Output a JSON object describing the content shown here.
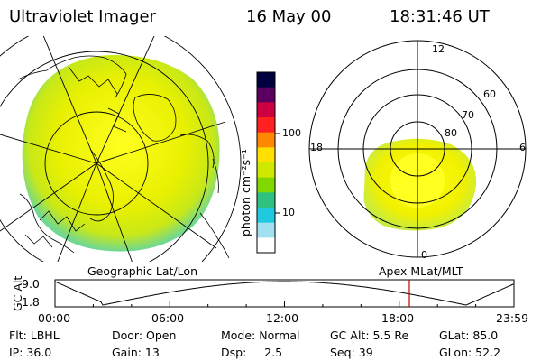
{
  "header": {
    "instrument": "Ultraviolet Imager",
    "date": "16 May 00",
    "time": "18:31:46 UT"
  },
  "geo_map": {
    "label": "Geographic Lat/Lon"
  },
  "apex_map": {
    "label": "Apex MLat/MLT",
    "mlt_labels": [
      "12",
      "18",
      "6",
      "0"
    ],
    "mlat_labels": [
      "60",
      "70",
      "80"
    ]
  },
  "colorbar": {
    "unit_label": "photon cm⁻²s⁻¹",
    "ticks": [
      "100",
      "10"
    ],
    "colors": [
      "#000040",
      "#5b0060",
      "#cc0040",
      "#ff2020",
      "#ff8800",
      "#ffe000",
      "#cfe800",
      "#80d800",
      "#30c080",
      "#20c8e0",
      "#a0e0f0",
      "#ffffff"
    ]
  },
  "altitude_plot": {
    "axis_label": "GC Alt",
    "y_ticks": [
      "9.0",
      "1.8"
    ],
    "x_ticks": [
      "00:00",
      "06:00",
      "12:00",
      "18:00",
      "23:59"
    ],
    "current_time_hours": 18.53
  },
  "status": {
    "row1": [
      {
        "label": "Flt: LBHL"
      },
      {
        "label": "Door: Open"
      },
      {
        "label": "Mode: Normal"
      },
      {
        "label": "GC Alt: 5.5 Re"
      },
      {
        "label": "GLat:  85.0"
      }
    ],
    "row2": [
      {
        "label": "IP: 36.0"
      },
      {
        "label": "Gain: 13"
      },
      {
        "label": "Dsp:     2.5"
      },
      {
        "label": "Seq: 39"
      },
      {
        "label": "GLon:  52.2"
      }
    ]
  }
}
